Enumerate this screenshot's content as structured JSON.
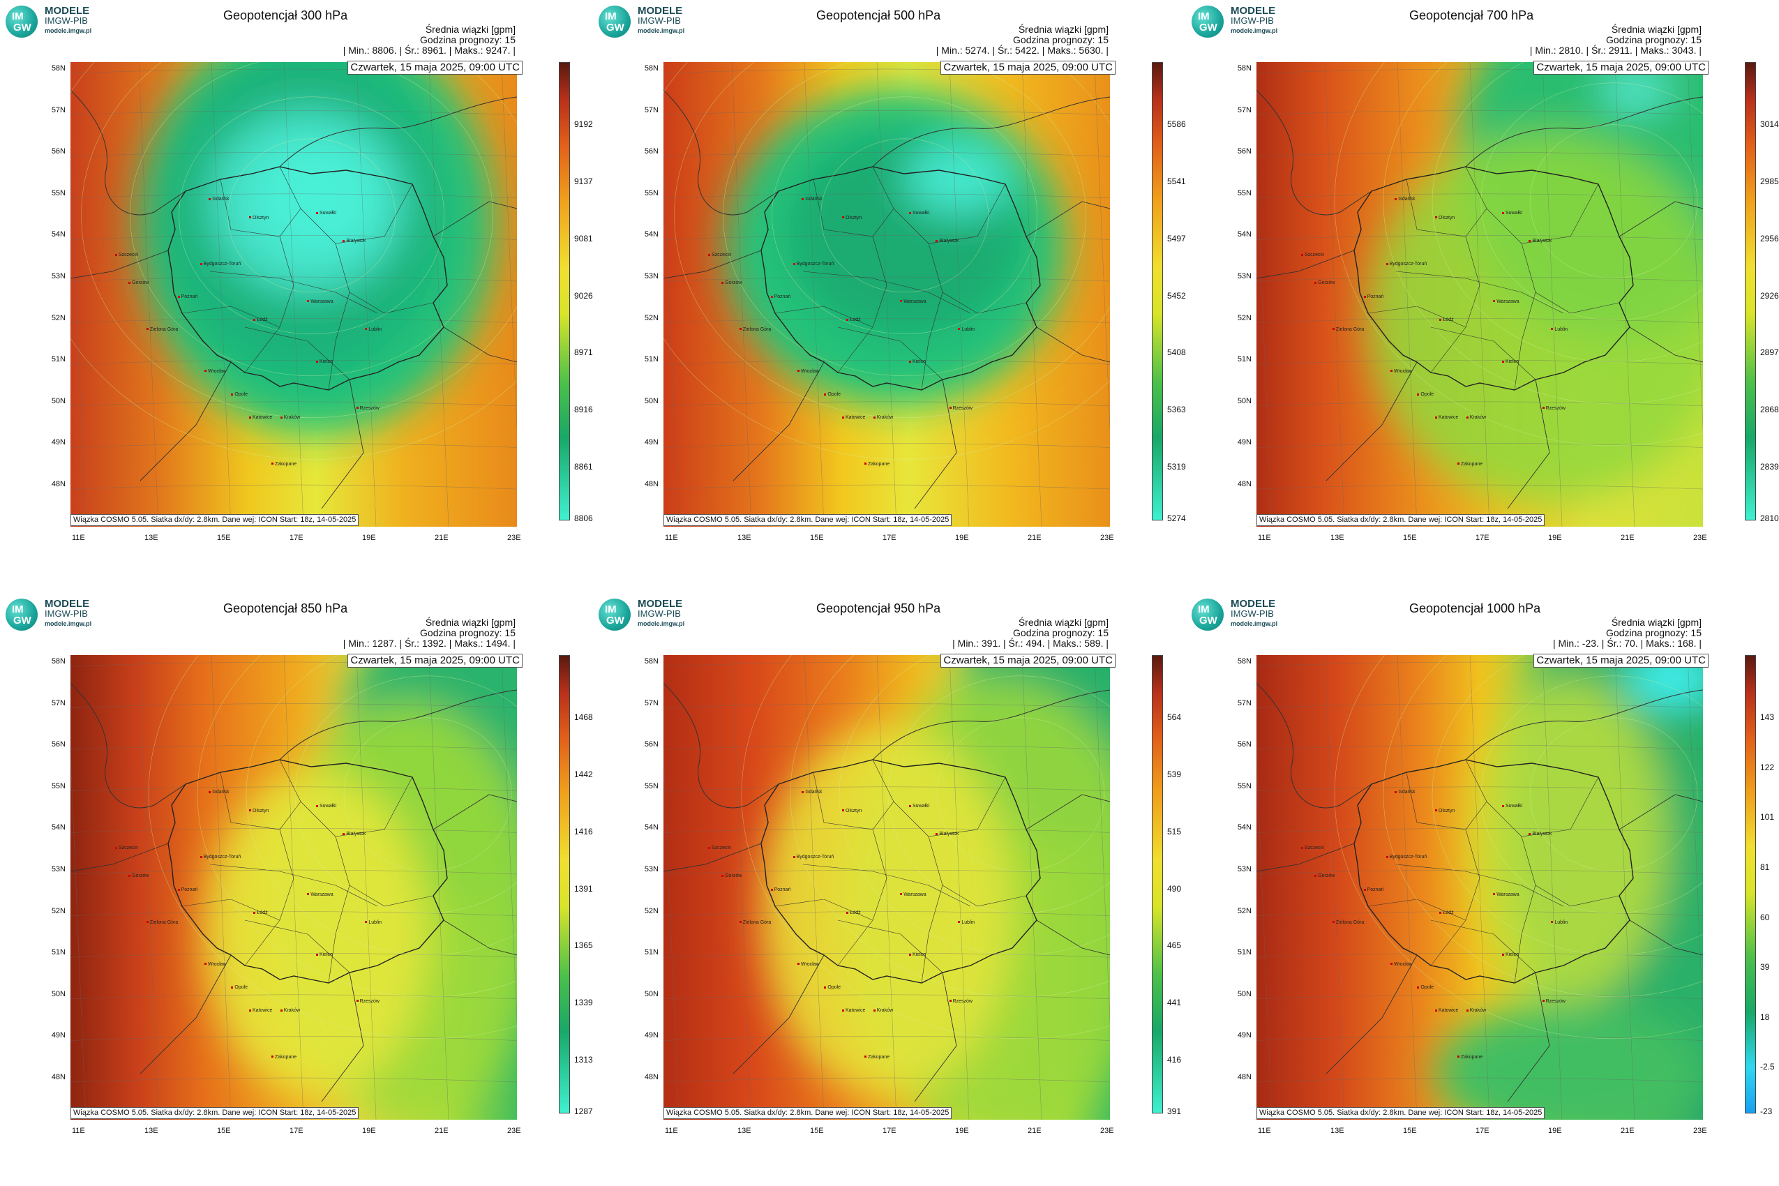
{
  "logo": {
    "mark_top": "IM",
    "mark_bottom": "GW",
    "line1": "MODELE",
    "line2": "IMGW-PIB",
    "line3": "modele.imgw.pl"
  },
  "common": {
    "stats_label": "Średnia wiązki [gpm]",
    "forecast_hour": "Godzina prognozy: 15",
    "date": "Czwartek, 15 maja 2025, 09:00 UTC",
    "credit": "Wiązka COSMO 5.05. Siatka dx/dy: 2.8km. Dane wej: ICON Start: 18z, 14-05-2025",
    "lat_labels": [
      "58N",
      "57N",
      "56N",
      "55N",
      "54N",
      "53N",
      "52N",
      "51N",
      "50N",
      "49N",
      "48N"
    ],
    "lon_labels": [
      "11E",
      "13E",
      "15E",
      "17E",
      "19E",
      "21E",
      "23E"
    ],
    "cities": [
      "Gdańsk",
      "Olsztyn",
      "Suwałki",
      "Białystok",
      "Szczecin",
      "Gorzów",
      "Bydgoszcz-Toruń",
      "Poznań",
      "Warszawa",
      "Zielona Góra",
      "Łódź",
      "Lublin",
      "Wrocław",
      "Kielce",
      "Opole",
      "Katowice",
      "Kraków",
      "Rzeszów",
      "Zakopane"
    ]
  },
  "panels": [
    {
      "title": "Geopotencjał 300 hPa",
      "stats": "| Min.:   8806. | Śr.:   8961. | Maks.:   9247. |",
      "colorbar": [
        "9192",
        "9137",
        "9081",
        "9026",
        "8971",
        "8916",
        "8861",
        "8806"
      ]
    },
    {
      "title": "Geopotencjał 500 hPa",
      "stats": "| Min.:   5274. | Śr.:   5422. | Maks.:   5630. |",
      "colorbar": [
        "5586",
        "5541",
        "5497",
        "5452",
        "5408",
        "5363",
        "5319",
        "5274"
      ]
    },
    {
      "title": "Geopotencjał 700 hPa",
      "stats": "| Min.:   2810. | Śr.:   2911. | Maks.:   3043. |",
      "colorbar": [
        "3014",
        "2985",
        "2956",
        "2926",
        "2897",
        "2868",
        "2839",
        "2810"
      ]
    },
    {
      "title": "Geopotencjał 850 hPa",
      "stats": "| Min.:   1287. | Śr.:   1392. | Maks.:   1494. |",
      "colorbar": [
        "1468",
        "1442",
        "1416",
        "1391",
        "1365",
        "1339",
        "1313",
        "1287"
      ]
    },
    {
      "title": "Geopotencjał 950 hPa",
      "stats": "| Min.:   391. | Śr.:   494. | Maks.:   589. |",
      "colorbar": [
        "564",
        "539",
        "515",
        "490",
        "465",
        "441",
        "416",
        "391"
      ]
    },
    {
      "title": "Geopotencjał 1000 hPa",
      "stats": "| Min.:   -23. | Śr.:   70. | Maks.:   168. |",
      "colorbar": [
        "143",
        "122",
        "101",
        "81",
        "60",
        "39",
        "18",
        "-2.5",
        "-23"
      ]
    }
  ]
}
